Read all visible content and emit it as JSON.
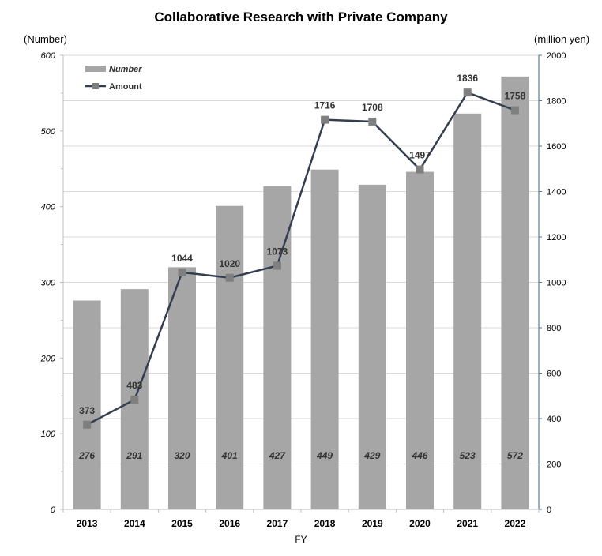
{
  "chart_data": {
    "type": "bar+line",
    "title": "Collaborative Research with  Private Company",
    "xlabel": "FY",
    "ylabel_left": "(Number)",
    "ylabel_right": "(million yen)",
    "categories": [
      "2013",
      "2014",
      "2015",
      "2016",
      "2017",
      "2018",
      "2019",
      "2020",
      "2021",
      "2022"
    ],
    "series": [
      {
        "name": "Number",
        "type": "bar",
        "axis": "left",
        "values": [
          276,
          291,
          320,
          401,
          427,
          449,
          429,
          446,
          523,
          572
        ]
      },
      {
        "name": "Amount",
        "type": "line",
        "axis": "right",
        "values": [
          373,
          483,
          1044,
          1020,
          1073,
          1716,
          1708,
          1497,
          1836,
          1758
        ]
      }
    ],
    "ylim_left": [
      0,
      600
    ],
    "yticks_left": [
      0,
      100,
      200,
      300,
      400,
      500,
      600
    ],
    "ylim_right": [
      0,
      2000
    ],
    "yticks_right": [
      0,
      200,
      400,
      600,
      800,
      1000,
      1200,
      1400,
      1600,
      1800,
      2000
    ],
    "grid": true,
    "legend_position": "top-left",
    "colors": {
      "bar": "#a6a6a6",
      "line": "#333f50",
      "marker": "#7f7f7f",
      "grid": "#d9d9d9",
      "axis": "#5b7a9a"
    }
  }
}
